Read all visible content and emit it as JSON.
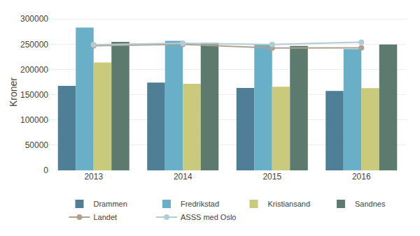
{
  "chart_data": {
    "type": "bar",
    "categories": [
      "2013",
      "2014",
      "2015",
      "2016"
    ],
    "series": [
      {
        "name": "Drammen",
        "type": "bar",
        "color": "#4e7f96",
        "values": [
          167519,
          174113,
          163171,
          157532
        ]
      },
      {
        "name": "Fredrikstad",
        "type": "bar",
        "color": "#6aafc8",
        "values": [
          283129,
          256737,
          249567,
          240396
        ]
      },
      {
        "name": "Kristiansand",
        "type": "bar",
        "color": "#c9ca7c",
        "values": [
          213649,
          171700,
          165700,
          163000
        ]
      },
      {
        "name": "Sandnes",
        "type": "bar",
        "color": "#5c7a6e",
        "values": [
          254800,
          252600,
          246800,
          249500
        ]
      },
      {
        "name": "Landet",
        "type": "line",
        "marker": "circle",
        "color": "#b0a090",
        "values": [
          247000,
          249800,
          242500,
          243000
        ]
      },
      {
        "name": "ASSS med Oslo",
        "type": "line",
        "marker": "circle",
        "color": "#b0ccd6",
        "values": [
          249000,
          252000,
          249500,
          254000
        ]
      }
    ],
    "ylabel": "Kroner",
    "ylim": [
      0,
      310000
    ],
    "yticks": [
      0,
      50000,
      100000,
      150000,
      200000,
      250000,
      300000
    ],
    "grid": true,
    "legend": "bottom"
  }
}
